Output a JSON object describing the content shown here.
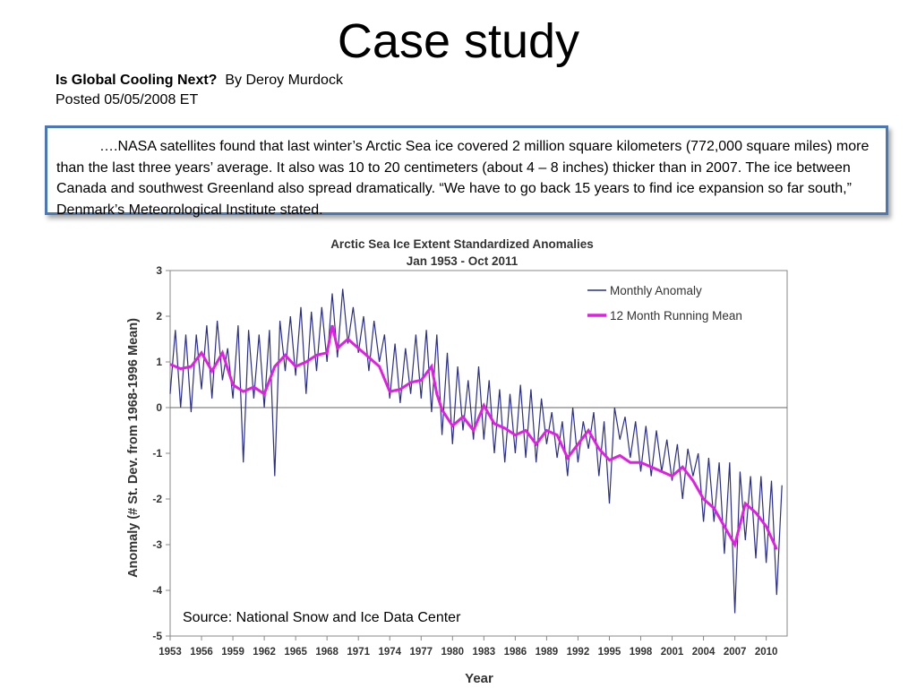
{
  "slide": {
    "title": "Case study",
    "article_title": "Is Global Cooling Next?",
    "article_author": "By Deroy Murdock",
    "posted": "Posted 05/05/2008 ET",
    "quote": "….NASA satellites found that last winter’s Arctic Sea ice covered 2 million square kilometers (772,000 square miles) more than the last three years’ average. It also was 10 to 20 centimeters (about 4 – 8 inches) thicker than in 2007. The ice between Canada and southwest Greenland also spread dramatically. “We have to go back 15 years to find ice expansion so far south,” Denmark’s Meteorological Institute stated.",
    "source": "Source: National Snow and Ice Data Center"
  },
  "chart_data": {
    "type": "line",
    "title": "Arctic Sea Ice Extent Standardized Anomalies",
    "subtitle": "Jan 1953 - Oct 2011",
    "xlabel": "Year",
    "ylabel": "Anomaly (# St. Dev. from 1968-1996 Mean)",
    "xlim": [
      1953,
      2012
    ],
    "ylim": [
      -5,
      3
    ],
    "x_ticks": [
      "1953",
      "1956",
      "1959",
      "1962",
      "1965",
      "1968",
      "1971",
      "1974",
      "1977",
      "1980",
      "1983",
      "1986",
      "1989",
      "1992",
      "1995",
      "1998",
      "2001",
      "2004",
      "2007",
      "2010"
    ],
    "y_ticks": [
      "3",
      "2",
      "1",
      "0",
      "-1",
      "-2",
      "-3",
      "-4",
      "-5"
    ],
    "grid": false,
    "zero_line": true,
    "legend": "top-right",
    "colors": {
      "monthly": "#2b2f8c",
      "running": "#e020e0"
    },
    "series": [
      {
        "name": "Monthly Anomaly",
        "x": [
          1953.0,
          1953.5,
          1954.0,
          1954.5,
          1955.0,
          1955.5,
          1956.0,
          1956.5,
          1957.0,
          1957.5,
          1958.0,
          1958.5,
          1959.0,
          1959.5,
          1960.0,
          1960.5,
          1961.0,
          1961.5,
          1962.0,
          1962.5,
          1963.0,
          1963.5,
          1964.0,
          1964.5,
          1965.0,
          1965.5,
          1966.0,
          1966.5,
          1967.0,
          1967.5,
          1968.0,
          1968.5,
          1969.0,
          1969.5,
          1970.0,
          1970.5,
          1971.0,
          1971.5,
          1972.0,
          1972.5,
          1973.0,
          1973.5,
          1974.0,
          1974.5,
          1975.0,
          1975.5,
          1976.0,
          1976.5,
          1977.0,
          1977.5,
          1978.0,
          1978.5,
          1979.0,
          1979.5,
          1980.0,
          1980.5,
          1981.0,
          1981.5,
          1982.0,
          1982.5,
          1983.0,
          1983.5,
          1984.0,
          1984.5,
          1985.0,
          1985.5,
          1986.0,
          1986.5,
          1987.0,
          1987.5,
          1988.0,
          1988.5,
          1989.0,
          1989.5,
          1990.0,
          1990.5,
          1991.0,
          1991.5,
          1992.0,
          1992.5,
          1993.0,
          1993.5,
          1994.0,
          1994.5,
          1995.0,
          1995.5,
          1996.0,
          1996.5,
          1997.0,
          1997.5,
          1998.0,
          1998.5,
          1999.0,
          1999.5,
          2000.0,
          2000.5,
          2001.0,
          2001.5,
          2002.0,
          2002.5,
          2003.0,
          2003.5,
          2004.0,
          2004.5,
          2005.0,
          2005.5,
          2006.0,
          2006.5,
          2007.0,
          2007.5,
          2008.0,
          2008.5,
          2009.0,
          2009.5,
          2010.0,
          2010.5,
          2011.0,
          2011.5
        ],
        "y": [
          0.3,
          1.7,
          0.0,
          1.6,
          -0.1,
          1.6,
          0.4,
          1.8,
          0.2,
          1.9,
          0.6,
          1.3,
          0.2,
          1.8,
          -1.2,
          1.7,
          0.2,
          1.6,
          0.0,
          1.7,
          -1.5,
          1.9,
          0.8,
          2.0,
          0.7,
          2.2,
          0.3,
          2.1,
          0.8,
          2.2,
          1.0,
          2.5,
          1.1,
          2.6,
          1.4,
          2.2,
          1.2,
          2.0,
          0.8,
          1.9,
          1.0,
          1.6,
          0.2,
          1.4,
          0.1,
          1.3,
          0.3,
          1.6,
          0.2,
          1.7,
          -0.1,
          1.6,
          -0.6,
          1.2,
          -0.8,
          0.9,
          -0.5,
          0.6,
          -0.7,
          0.9,
          -0.7,
          0.6,
          -1.0,
          0.4,
          -1.2,
          0.3,
          -1.0,
          0.5,
          -1.1,
          0.4,
          -1.2,
          0.2,
          -0.8,
          -0.1,
          -1.1,
          -0.3,
          -1.5,
          0.0,
          -1.2,
          -0.3,
          -0.9,
          -0.1,
          -1.5,
          -0.3,
          -2.1,
          0.0,
          -0.7,
          -0.2,
          -1.1,
          -0.3,
          -1.4,
          -0.4,
          -1.5,
          -0.5,
          -1.4,
          -0.7,
          -1.6,
          -0.8,
          -2.0,
          -0.9,
          -1.5,
          -1.0,
          -2.5,
          -1.1,
          -2.5,
          -1.2,
          -3.2,
          -1.2,
          -4.5,
          -1.4,
          -2.9,
          -1.5,
          -3.3,
          -1.5,
          -3.4,
          -1.6,
          -4.1,
          -1.7
        ]
      },
      {
        "name": "12 Month Running Mean",
        "x": [
          1953.0,
          1954.0,
          1955.0,
          1956.0,
          1957.0,
          1958.0,
          1959.0,
          1960.0,
          1961.0,
          1962.0,
          1963.0,
          1964.0,
          1965.0,
          1966.0,
          1967.0,
          1968.0,
          1968.5,
          1969.0,
          1970.0,
          1971.0,
          1972.0,
          1973.0,
          1974.0,
          1975.0,
          1976.0,
          1977.0,
          1978.0,
          1978.5,
          1979.0,
          1980.0,
          1981.0,
          1982.0,
          1983.0,
          1984.0,
          1985.0,
          1986.0,
          1987.0,
          1988.0,
          1989.0,
          1990.0,
          1991.0,
          1992.0,
          1993.0,
          1994.0,
          1995.0,
          1996.0,
          1997.0,
          1998.0,
          1999.0,
          2000.0,
          2001.0,
          2002.0,
          2003.0,
          2004.0,
          2005.0,
          2006.0,
          2007.0,
          2008.0,
          2009.0,
          2010.0,
          2011.0
        ],
        "y": [
          0.95,
          0.85,
          0.9,
          1.2,
          0.8,
          1.2,
          0.5,
          0.35,
          0.45,
          0.3,
          0.9,
          1.15,
          0.9,
          1.0,
          1.15,
          1.2,
          1.8,
          1.3,
          1.5,
          1.3,
          1.1,
          0.9,
          0.35,
          0.4,
          0.55,
          0.6,
          0.9,
          0.3,
          -0.05,
          -0.4,
          -0.2,
          -0.5,
          0.05,
          -0.35,
          -0.45,
          -0.6,
          -0.5,
          -0.8,
          -0.5,
          -0.6,
          -1.1,
          -0.8,
          -0.5,
          -0.9,
          -1.15,
          -1.05,
          -1.2,
          -1.2,
          -1.3,
          -1.4,
          -1.5,
          -1.3,
          -1.6,
          -2.0,
          -2.2,
          -2.6,
          -3.0,
          -2.1,
          -2.3,
          -2.6,
          -3.1
        ]
      }
    ]
  }
}
